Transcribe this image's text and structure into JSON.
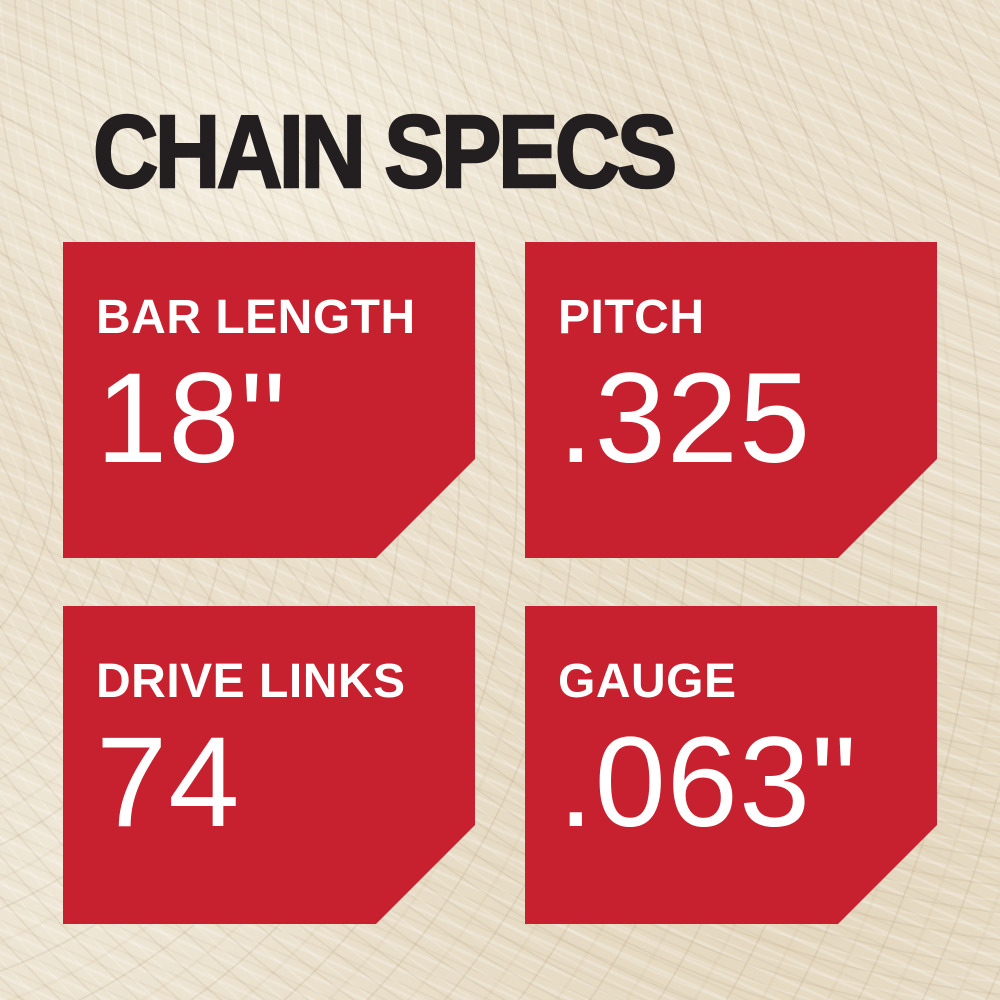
{
  "title": "CHAIN SPECS",
  "colors": {
    "card_red": "#c7212f",
    "title_black": "#231f20",
    "background_beige": "#e9dfcb",
    "card_text_white": "#ffffff"
  },
  "cards": [
    {
      "id": "bar-length",
      "label": "BAR LENGTH",
      "value": "18\""
    },
    {
      "id": "pitch",
      "label": "PITCH",
      "value": ".325"
    },
    {
      "id": "drive-links",
      "label": "DRIVE LINKS",
      "value": "74"
    },
    {
      "id": "gauge",
      "label": "GAUGE",
      "value": ".063\""
    }
  ]
}
